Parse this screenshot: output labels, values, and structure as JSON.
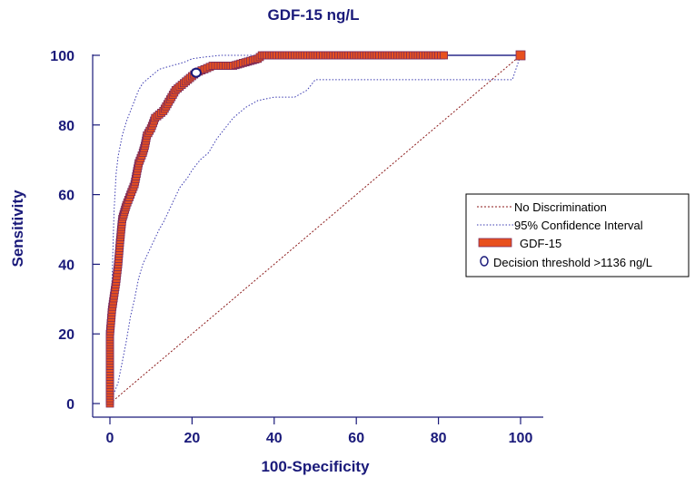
{
  "chart_data": {
    "type": "line",
    "title": "GDF-15 ng/L",
    "xlabel": "100-Specificity",
    "ylabel": "Sensitivity",
    "xlim": [
      0,
      100
    ],
    "ylim": [
      0,
      100
    ],
    "xticks": [
      "0",
      "20",
      "40",
      "60",
      "80",
      "100"
    ],
    "yticks": [
      "0",
      "20",
      "40",
      "60",
      "80",
      "100"
    ],
    "legend_position": "right",
    "legend": [
      {
        "label": "No Discrimination",
        "kind": "dashed-line",
        "color": "#8b1a1a"
      },
      {
        "label": "95% Confidence Interval",
        "kind": "dotted-line",
        "color": "#3a3ab0"
      },
      {
        "label": "GDF-15",
        "kind": "box",
        "color": "#e8501e"
      },
      {
        "label": "Decision threshold  >1136 ng/L",
        "kind": "circle",
        "color": "#1a1a7a"
      }
    ],
    "series": [
      {
        "name": "GDF-15",
        "x": [
          0,
          0,
          0,
          0.5,
          1,
          1.5,
          2,
          2.5,
          3,
          3.5,
          4,
          5,
          6,
          6.5,
          7,
          8,
          8.5,
          9,
          10,
          11,
          12,
          13,
          14,
          15,
          16,
          17,
          18,
          19,
          20,
          21,
          23,
          25,
          27,
          30,
          33,
          36,
          37,
          40,
          45,
          50,
          55,
          60,
          65,
          70,
          75,
          80,
          82,
          90,
          100
        ],
        "y": [
          0,
          10,
          20,
          27,
          31,
          35,
          40,
          47,
          53,
          55,
          57,
          60,
          63,
          66,
          69,
          72,
          74,
          77,
          79,
          82,
          83,
          84,
          86,
          88,
          90,
          91,
          92,
          93,
          94,
          95,
          96,
          97,
          97,
          97,
          98,
          99,
          100,
          100,
          100,
          100,
          100,
          100,
          100,
          100,
          100,
          100,
          100,
          100,
          100
        ]
      },
      {
        "name": "95% Confidence Interval",
        "x": [
          0,
          0.5,
          1,
          1.5,
          2,
          3,
          4,
          5,
          6,
          7,
          8,
          10,
          12,
          15,
          18,
          20,
          23,
          27,
          30,
          35,
          100
        ],
        "y": [
          14,
          35,
          55,
          66,
          71,
          77,
          81,
          84,
          87,
          90,
          92,
          94,
          96,
          97,
          98,
          99,
          99.5,
          100,
          100,
          100,
          100
        ]
      },
      {
        "name": "95% Confidence Interval",
        "x": [
          0,
          2,
          3,
          4,
          5,
          6,
          7,
          8,
          10,
          12,
          13,
          15,
          17,
          19,
          20,
          22,
          24,
          26,
          28,
          30,
          33,
          36,
          40,
          45,
          48,
          50,
          70,
          90,
          98,
          100
        ],
        "y": [
          0,
          6,
          12,
          18,
          25,
          30,
          36,
          40,
          45,
          50,
          52,
          57,
          62,
          65,
          67,
          70,
          72,
          76,
          79,
          82,
          85,
          87,
          88,
          88,
          90,
          93,
          93,
          93,
          93,
          100
        ]
      },
      {
        "name": "No Discrimination",
        "x": [
          0,
          100
        ],
        "y": [
          0,
          100
        ]
      }
    ],
    "threshold_point": {
      "x": 21,
      "y": 95
    },
    "colors": {
      "axis": "#1a1a7a",
      "roc_fill": "#e8501e",
      "roc_edge": "#7a2a5a",
      "ci": "#3a3ab0",
      "diagonal": "#8b1a1a",
      "curve_line": "#2a2a8a"
    }
  }
}
